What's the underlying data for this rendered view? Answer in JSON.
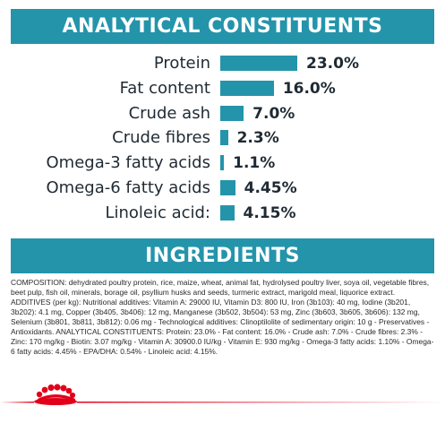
{
  "analytical": {
    "title": "ANALYTICAL CONSTITUENTS"
  },
  "chart_data": {
    "type": "bar",
    "orientation": "horizontal",
    "categories": [
      "Protein",
      "Fat content",
      "Crude ash",
      "Crude fibres",
      "Omega-3 fatty acids",
      "Omega-6 fatty acids",
      "Linoleic acid:"
    ],
    "values": [
      23.0,
      16.0,
      7.0,
      2.3,
      1.1,
      4.45,
      4.15
    ],
    "value_labels": [
      "23.0%",
      "16.0%",
      "7.0%",
      "2.3%",
      "1.1%",
      "4.45%",
      "4.15%"
    ],
    "unit": "%",
    "bar_color": "#2494ab"
  },
  "ingredients": {
    "title": "INGREDIENTS",
    "text": "COMPOSITION: dehydrated poultry protein, rice, maize, wheat, animal fat, hydrolysed poultry liver, soya oil, vegetable fibres, beet pulp, fish oil, minerals, borage oil, psyllium husks and seeds, turmeric extract, marigold meal, liquorice extract. ADDITIVES (per kg): Nutritional additives: Vitamin A: 29000 IU, Vitamin D3: 800 IU, Iron (3b103): 40 mg, Iodine (3b201, 3b202): 4.1 mg, Copper (3b405, 3b406): 12 mg, Manganese (3b502, 3b504): 53 mg, Zinc (3b603, 3b605, 3b606): 132 mg, Selenium (3b801, 3b811, 3b812): 0.06 mg - Technological additives: Clinoptilolite of sedimentary origin: 10 g - Preservatives - Antioxidants. ANALYTICAL CONSTITUENTS: Protein: 23.0% - Fat content: 16.0% - Crude ash: 7.0% - Crude fibres: 2.3% - Zinc: 170 mg/kg - Biotin: 3.07 mg/kg - Vitamin A: 30900.0 IU/kg - Vitamin E: 930 mg/kg - Omega-3 fatty acids: 1.10% - Omega-6 fatty acids: 4.45% - EPA/DHA: 0.54% - Linoleic acid: 4.15%."
  },
  "colors": {
    "accent": "#2494ab",
    "brand_red": "#e2001a"
  },
  "icons": {
    "logo": "royal-canin-crown-logo"
  }
}
